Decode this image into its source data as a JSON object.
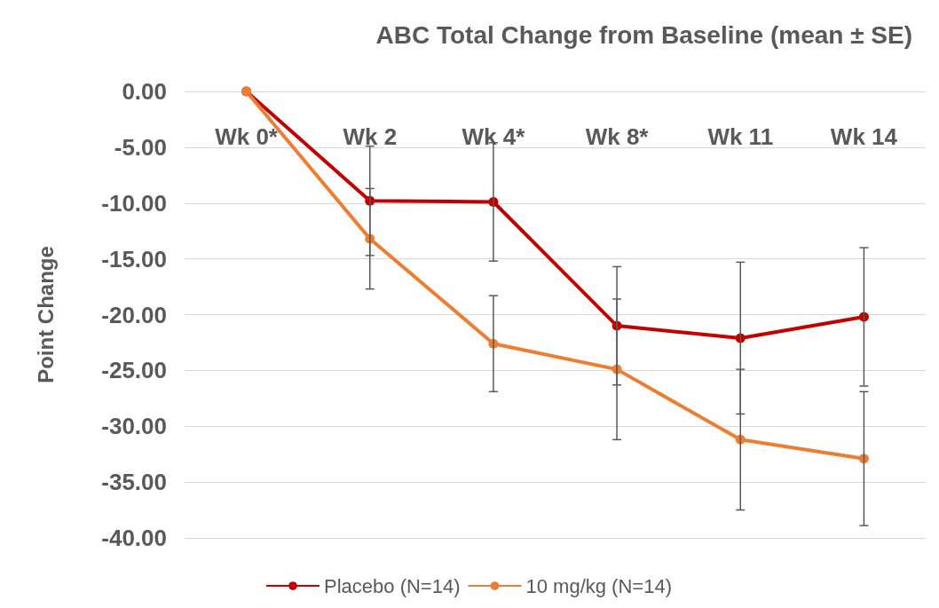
{
  "chart_data": {
    "type": "line",
    "title": "ABC Total Change from Baseline (mean ± SE)",
    "ylabel": "Point Change",
    "categories": [
      "Wk 0*",
      "Wk 2",
      "Wk 4*",
      "Wk 8*",
      "Wk 11",
      "Wk 14"
    ],
    "series": [
      {
        "name": "Placebo (N=14)",
        "color": "#c00000",
        "values": [
          0,
          -9.8,
          -9.9,
          -21.0,
          -22.1,
          -20.2
        ],
        "errors": [
          null,
          4.9,
          5.3,
          5.3,
          6.8,
          6.2
        ]
      },
      {
        "name": "10 mg/kg (N=14)",
        "color": "#ed7d31",
        "values": [
          0,
          -13.2,
          -22.6,
          -24.9,
          -31.2,
          -32.9
        ],
        "errors": [
          null,
          4.5,
          4.3,
          6.3,
          6.3,
          6.0
        ]
      }
    ],
    "ylim": [
      -40,
      0
    ],
    "yticks": [
      {
        "value": -40,
        "label": "-40.00"
      },
      {
        "value": -35,
        "label": "-35.00"
      },
      {
        "value": -30,
        "label": "-30.00"
      },
      {
        "value": -25,
        "label": "-25.00"
      },
      {
        "value": -20,
        "label": "-20.00"
      },
      {
        "value": -15,
        "label": "-15.00"
      },
      {
        "value": -10,
        "label": "-10.00"
      },
      {
        "value": -5,
        "label": "-5.00"
      },
      {
        "value": 0,
        "label": "0.00"
      }
    ],
    "grid": "y",
    "legend": "bottom",
    "marker": "circle",
    "line_style": "solid"
  }
}
